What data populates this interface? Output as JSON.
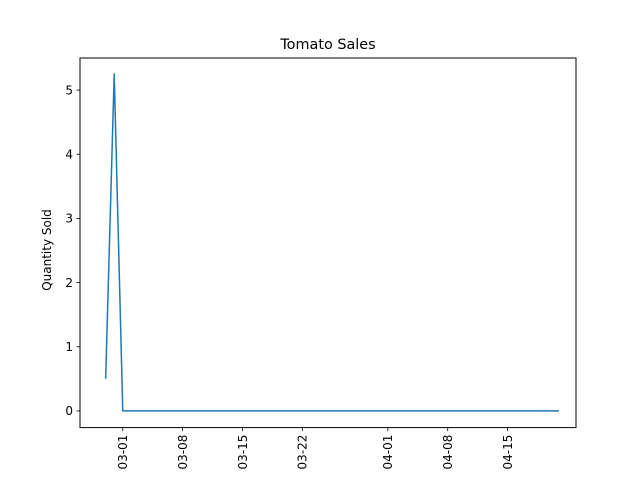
{
  "chart_data": {
    "type": "line",
    "title": "Tomato Sales",
    "xlabel": "",
    "ylabel": "Quantity Sold",
    "x_axis": "date",
    "xlim": [
      "2024-02-25",
      "2024-04-23"
    ],
    "ylim": [
      -0.26,
      5.5
    ],
    "x_ticks": [
      {
        "date": "2024-03-01",
        "label": "03-01"
      },
      {
        "date": "2024-03-08",
        "label": "03-08"
      },
      {
        "date": "2024-03-15",
        "label": "03-15"
      },
      {
        "date": "2024-03-22",
        "label": "03-22"
      },
      {
        "date": "2024-04-01",
        "label": "04-01"
      },
      {
        "date": "2024-04-08",
        "label": "04-08"
      },
      {
        "date": "2024-04-15",
        "label": "04-15"
      }
    ],
    "y_ticks": [
      {
        "value": 0,
        "label": "0"
      },
      {
        "value": 1,
        "label": "1"
      },
      {
        "value": 2,
        "label": "2"
      },
      {
        "value": 3,
        "label": "3"
      },
      {
        "value": 4,
        "label": "4"
      },
      {
        "value": 5,
        "label": "5"
      }
    ],
    "grid": false,
    "legend": "none",
    "series": [
      {
        "color": "#1f77b4",
        "points": [
          {
            "x": "2024-02-28",
            "y": 0.5
          },
          {
            "x": "2024-02-29",
            "y": 5.25
          },
          {
            "x": "2024-03-01",
            "y": 0
          },
          {
            "x": "2024-04-21",
            "y": 0
          }
        ]
      }
    ]
  }
}
